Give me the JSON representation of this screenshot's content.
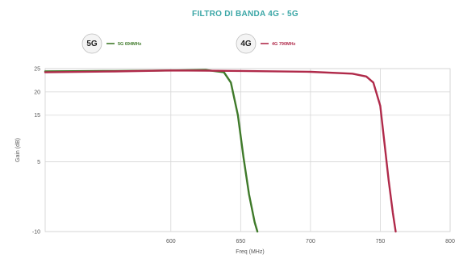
{
  "chart_data": {
    "type": "line",
    "title": "FILTRO DI BANDA 4G - 5G",
    "xlabel": "Freq (MHz)",
    "ylabel": "Gain (dB)",
    "xlim": [
      510,
      800
    ],
    "ylim": [
      -10,
      25
    ],
    "xticks": [
      600,
      650,
      700,
      750,
      800
    ],
    "yticks": [
      25,
      20,
      15,
      5,
      -10
    ],
    "grid": true,
    "legend_position": "top",
    "series": [
      {
        "name": "5G 694MHz",
        "badge": "5G",
        "color": "#3f7a2a",
        "x": [
          510,
          560,
          600,
          625,
          638,
          643,
          648,
          652,
          656,
          660,
          662
        ],
        "y": [
          24.4,
          24.5,
          24.6,
          24.7,
          24.2,
          22.0,
          15.0,
          6.0,
          -2.0,
          -8.0,
          -10.0
        ]
      },
      {
        "name": "4G 790MHz",
        "badge": "4G",
        "color": "#b02a4a",
        "x": [
          510,
          560,
          600,
          650,
          700,
          730,
          740,
          745,
          750,
          753,
          756,
          759,
          761
        ],
        "y": [
          24.2,
          24.4,
          24.6,
          24.5,
          24.3,
          23.9,
          23.3,
          22.0,
          17.0,
          9.0,
          1.0,
          -6.0,
          -10.0
        ]
      }
    ]
  }
}
